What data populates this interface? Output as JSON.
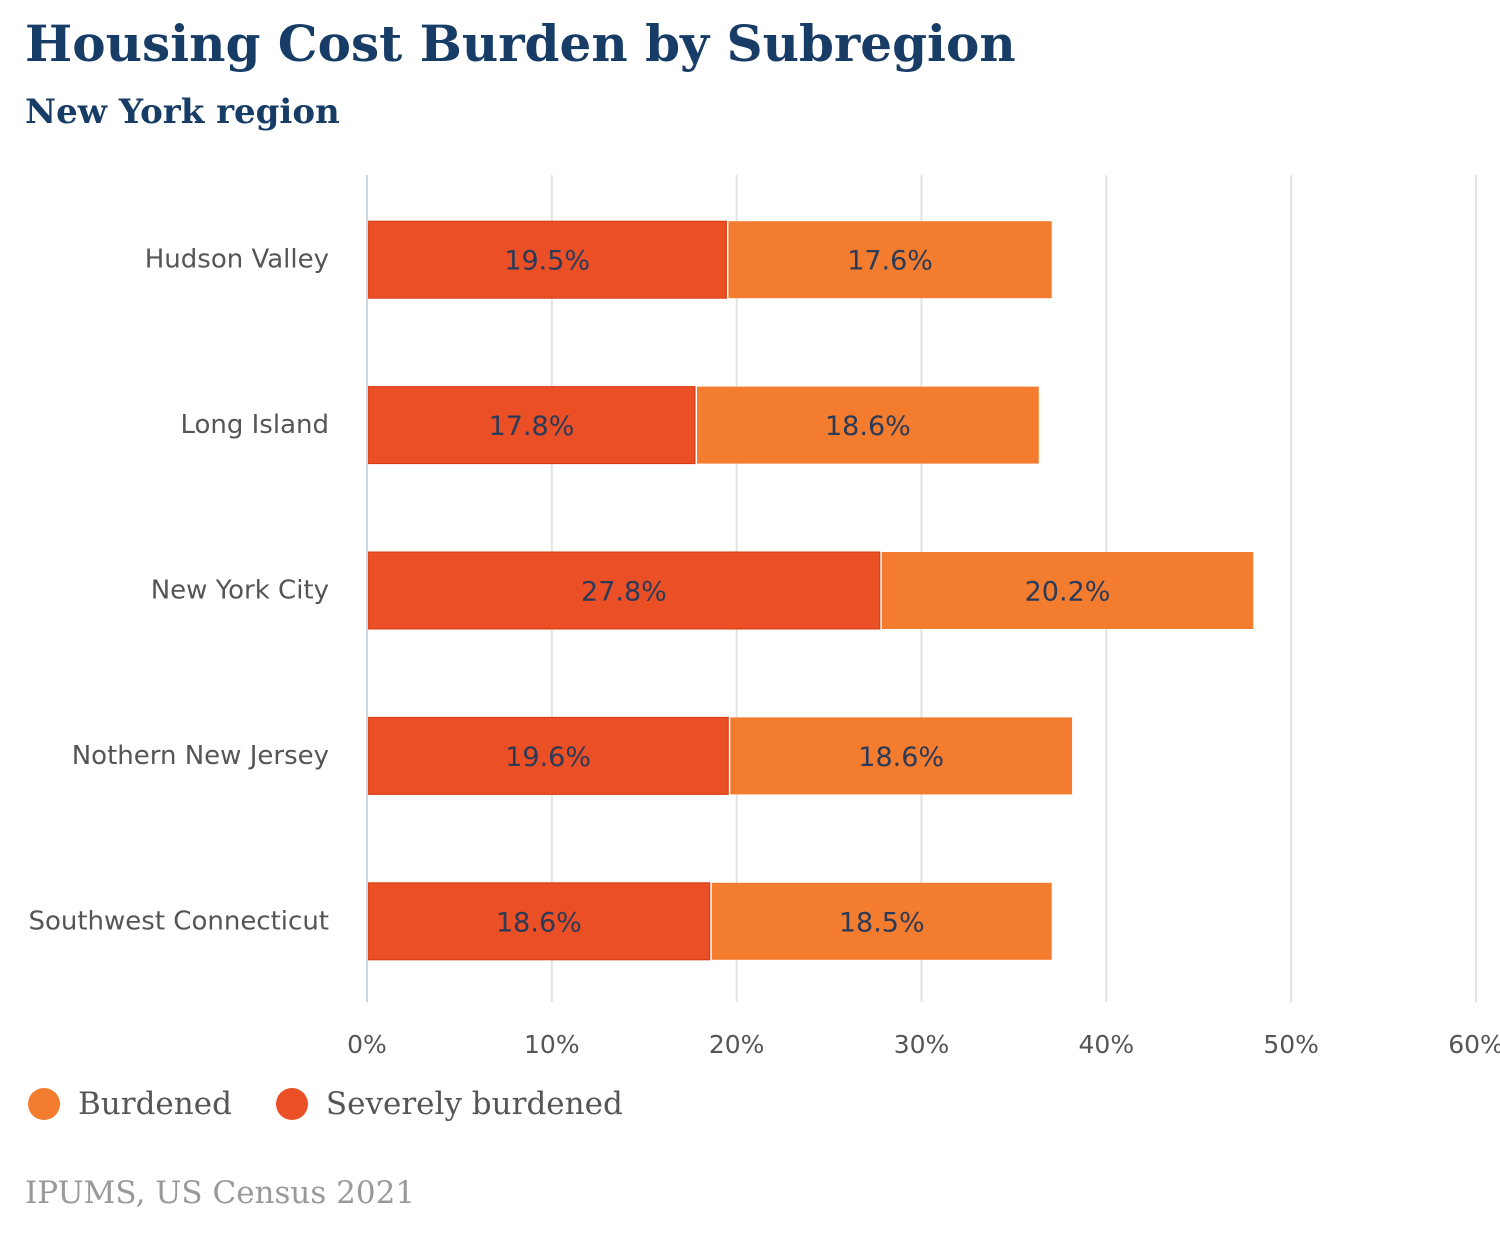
{
  "chart_data": {
    "type": "bar",
    "orientation": "horizontal",
    "stacked": true,
    "title": "Housing Cost Burden by Subregion",
    "subtitle": "New York region",
    "source": "IPUMS, US Census 2021",
    "categories": [
      "Hudson Valley",
      "Long Island",
      "New York City",
      "Nothern New Jersey",
      "Southwest Connecticut"
    ],
    "series": [
      {
        "name": "Severely burdened",
        "values": [
          19.5,
          17.8,
          27.8,
          19.6,
          18.6
        ],
        "labels": [
          "19.5%",
          "17.8%",
          "27.8%",
          "19.6%",
          "18.6%"
        ],
        "color": "#eb4f26"
      },
      {
        "name": "Burdened",
        "values": [
          17.6,
          18.6,
          20.2,
          18.6,
          18.5
        ],
        "labels": [
          "17.6%",
          "18.6%",
          "20.2%",
          "18.6%",
          "18.5%"
        ],
        "color": "#f47c2e"
      }
    ],
    "xlim": [
      0,
      60
    ],
    "xticks": [
      0,
      10,
      20,
      30,
      40,
      50,
      60
    ],
    "xtick_labels": [
      "0%",
      "10%",
      "20%",
      "30%",
      "40%",
      "50%",
      "60%"
    ],
    "grid": true,
    "legend": {
      "placement": "bottom-left",
      "items": [
        {
          "name": "Burdened",
          "color": "#f47c2e"
        },
        {
          "name": "Severely burdened",
          "color": "#eb4f26"
        }
      ]
    }
  }
}
